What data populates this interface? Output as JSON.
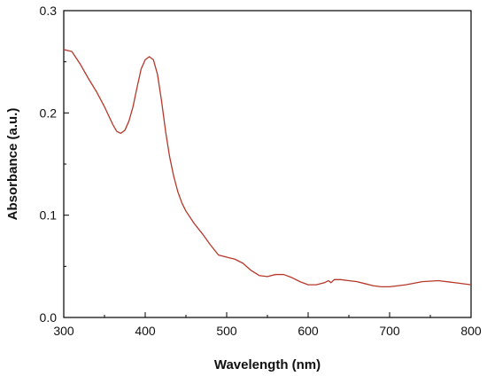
{
  "chart_data": {
    "type": "line",
    "title": "",
    "xlabel": "Wavelength (nm)",
    "ylabel": "Absorbance (a.u.)",
    "xlim": [
      300,
      800
    ],
    "ylim": [
      0,
      0.3
    ],
    "x_ticks": [
      "300",
      "400",
      "500",
      "600",
      "700",
      "800"
    ],
    "y_ticks": [
      "0.0",
      "0.1",
      "0.2",
      "0.3"
    ],
    "grid": false,
    "legend": "none",
    "series": [
      {
        "color": "#b5382a",
        "x": [
          300,
          310,
          320,
          330,
          340,
          350,
          360,
          365,
          370,
          375,
          380,
          385,
          390,
          395,
          400,
          405,
          410,
          415,
          420,
          425,
          430,
          435,
          440,
          445,
          450,
          460,
          470,
          480,
          490,
          500,
          510,
          520,
          530,
          540,
          550,
          560,
          570,
          580,
          590,
          600,
          610,
          620,
          625,
          628,
          632,
          640,
          650,
          660,
          670,
          680,
          690,
          700,
          720,
          740,
          760,
          780,
          800
        ],
        "y": [
          0.262,
          0.26,
          0.248,
          0.234,
          0.221,
          0.206,
          0.189,
          0.182,
          0.18,
          0.183,
          0.192,
          0.206,
          0.225,
          0.243,
          0.252,
          0.255,
          0.252,
          0.238,
          0.212,
          0.182,
          0.157,
          0.138,
          0.123,
          0.112,
          0.104,
          0.092,
          0.082,
          0.071,
          0.061,
          0.059,
          0.057,
          0.053,
          0.046,
          0.041,
          0.04,
          0.042,
          0.042,
          0.039,
          0.035,
          0.032,
          0.032,
          0.034,
          0.036,
          0.034,
          0.037,
          0.037,
          0.036,
          0.035,
          0.033,
          0.031,
          0.03,
          0.03,
          0.032,
          0.035,
          0.036,
          0.034,
          0.032
        ]
      }
    ]
  }
}
